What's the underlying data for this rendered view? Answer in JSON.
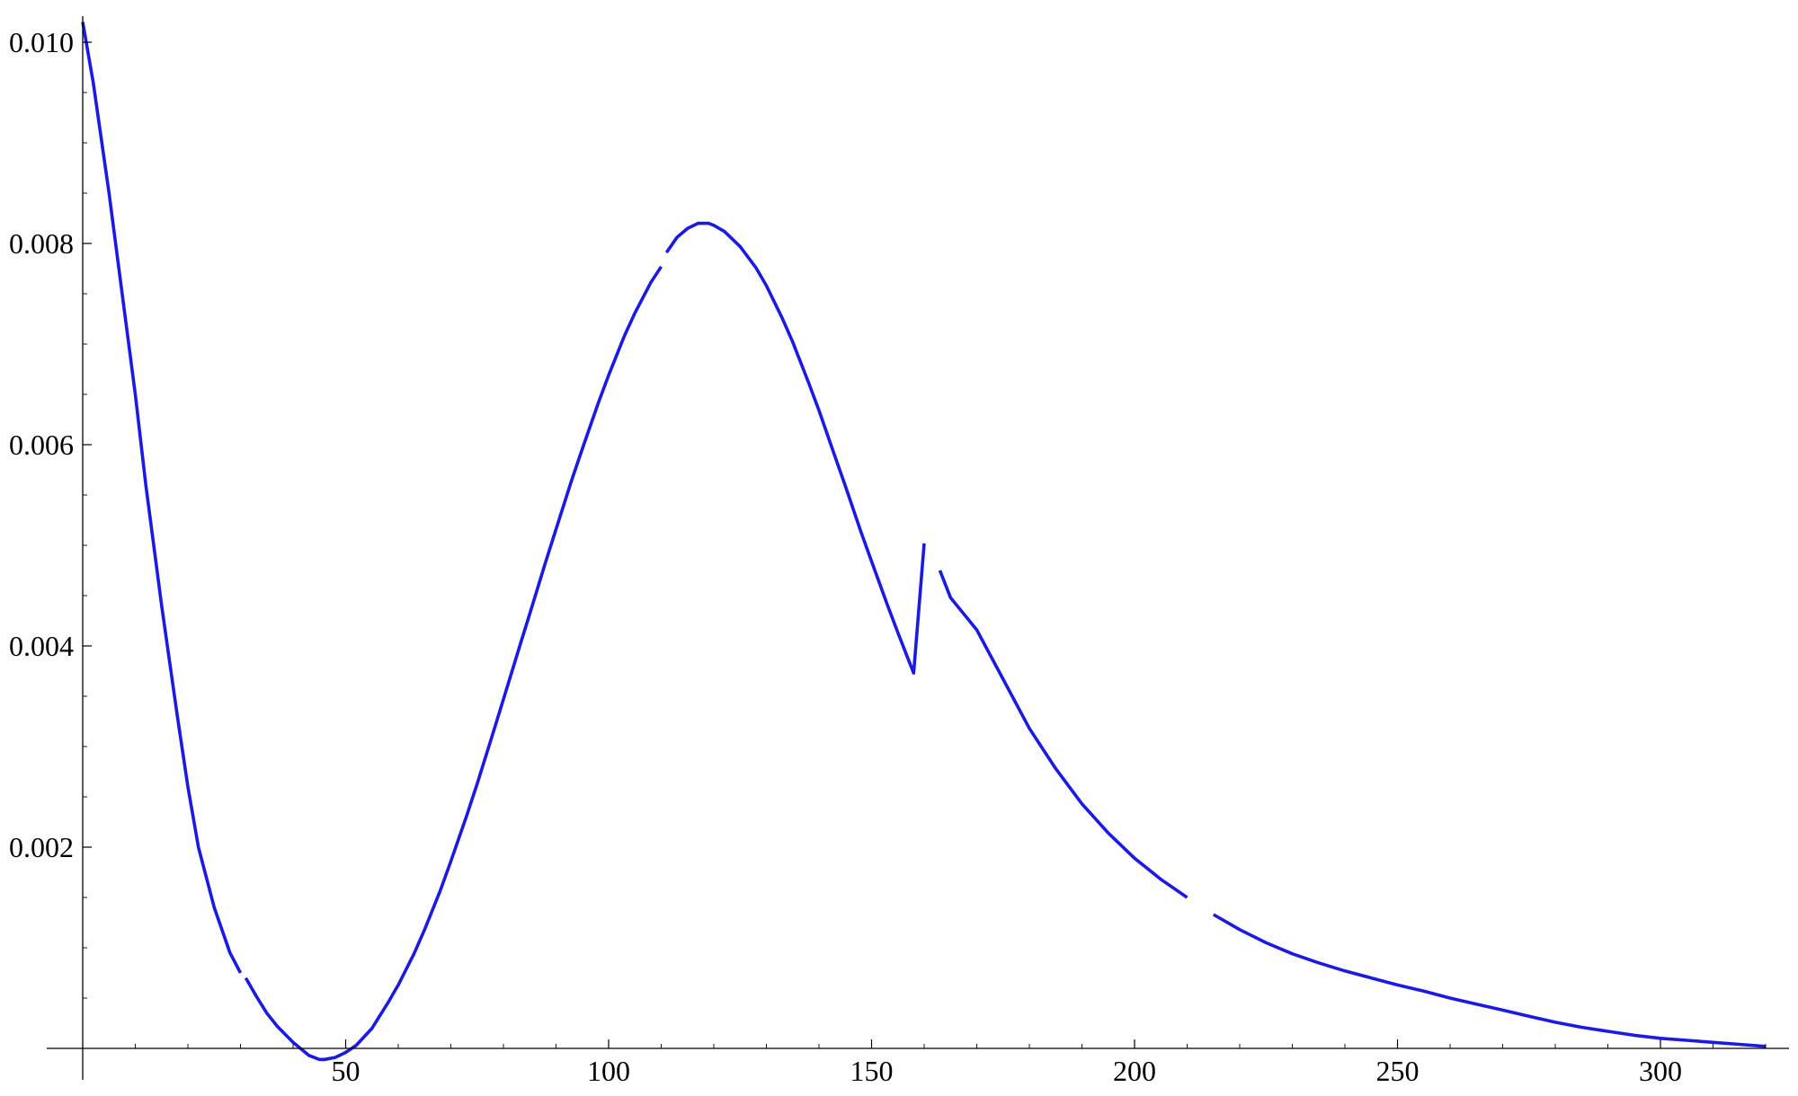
{
  "chart_data": {
    "type": "line",
    "title": "",
    "xlabel": "",
    "ylabel": "",
    "xlim": [
      0,
      320
    ],
    "ylim": [
      0,
      0.0102
    ],
    "x_ticks": [
      50,
      100,
      150,
      200,
      250,
      300
    ],
    "x_tick_labels": [
      "50",
      "100",
      "150",
      "200",
      "250",
      "300"
    ],
    "y_ticks": [
      0.002,
      0.004,
      0.006,
      0.008,
      0.01
    ],
    "y_tick_labels": [
      "0.002",
      "0.004",
      "0.006",
      "0.008",
      "0.010"
    ],
    "grid": false,
    "legend": "none",
    "line_color": "#1a1ae6",
    "series": [
      {
        "segments": [
          {
            "x": [
              0,
              2,
              5,
              8,
              10,
              12,
              15,
              18,
              20,
              22,
              25,
              28,
              30
            ],
            "y": [
              0.0102,
              0.0096,
              0.0085,
              0.0073,
              0.0065,
              0.0056,
              0.0044,
              0.0033,
              0.0026,
              0.002,
              0.0014,
              0.00095,
              0.00075
            ]
          },
          {
            "x": [
              31,
              33,
              35,
              37,
              40,
              43,
              45,
              46,
              48,
              50,
              52,
              55,
              58,
              60,
              63,
              65,
              68,
              70,
              73,
              75,
              78,
              80,
              83,
              85,
              88,
              90,
              93,
              95,
              98,
              100,
              103,
              105,
              108,
              110
            ],
            "y": [
              0.0007,
              0.00052,
              0.00035,
              0.00022,
              6e-05,
              -7e-05,
              -0.00011,
              -0.00011,
              -9e-05,
              -4e-05,
              3e-05,
              0.0002,
              0.00045,
              0.00063,
              0.00094,
              0.00118,
              0.00157,
              0.00186,
              0.00231,
              0.00263,
              0.00313,
              0.00347,
              0.00398,
              0.00432,
              0.00483,
              0.00516,
              0.00565,
              0.00596,
              0.00641,
              0.00669,
              0.00708,
              0.00731,
              0.00761,
              0.00777
            ]
          },
          {
            "x": [
              111,
              113,
              115,
              117,
              119,
              120,
              122,
              125,
              128,
              130,
              133,
              135,
              138,
              140,
              143,
              145,
              148,
              150,
              153,
              155,
              158,
              160
            ],
            "y": [
              0.00791,
              0.00806,
              0.00815,
              0.0082,
              0.0082,
              0.00818,
              0.00812,
              0.00797,
              0.00776,
              0.00758,
              0.00726,
              0.00702,
              0.00662,
              0.00634,
              0.00589,
              0.00559,
              0.00513,
              0.00484,
              0.00441,
              0.00413,
              0.00373,
              0.00502
            ]
          },
          {
            "x": [
              163,
              165,
              170,
              175,
              180,
              185,
              190,
              195,
              200,
              205,
              210
            ],
            "y": [
              0.00475,
              0.00448,
              0.00416,
              0.00367,
              0.00318,
              0.00278,
              0.00243,
              0.00214,
              0.00189,
              0.00168,
              0.0015
            ]
          },
          {
            "x": [
              215,
              220,
              225,
              230,
              235,
              240,
              245,
              250,
              255,
              260,
              265,
              270,
              275,
              280,
              285,
              290,
              295,
              300,
              305,
              310,
              315,
              320
            ],
            "y": [
              0.00133,
              0.00118,
              0.00105,
              0.00094,
              0.00085,
              0.00077,
              0.0007,
              0.00063,
              0.00057,
              0.0005,
              0.00044,
              0.00038,
              0.00032,
              0.00026,
              0.00021,
              0.00017,
              0.00013,
              0.0001,
              8e-05,
              6e-05,
              4e-05,
              2e-05
            ]
          }
        ]
      }
    ]
  }
}
